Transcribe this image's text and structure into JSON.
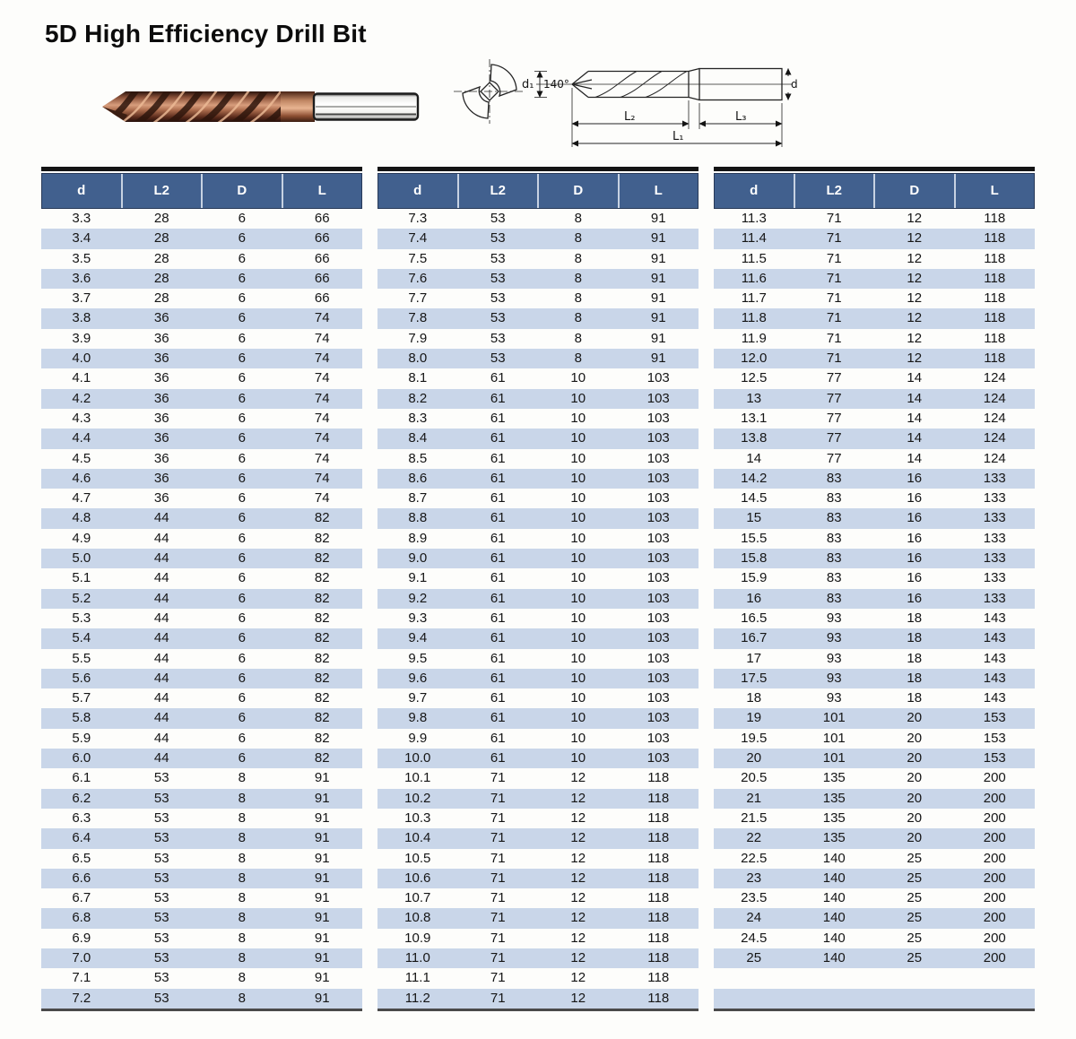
{
  "page": {
    "title": "5D High Efficiency Drill Bit"
  },
  "diagram": {
    "labels": {
      "d1": "d₁",
      "angle": "140°",
      "l2": "L₂",
      "l3": "L₃",
      "l1": "L₁",
      "d2": "d₂"
    }
  },
  "colors": {
    "header_bg": "#41608e",
    "row_alt": "#c9d6e9",
    "top_rule": "#141414",
    "bottom_rule": "#4a4a4a",
    "drill_copper": "#a96a4b"
  },
  "tables": [
    {
      "headers": [
        "d",
        "L2",
        "D",
        "L"
      ],
      "rows": [
        [
          "3.3",
          "28",
          "6",
          "66"
        ],
        [
          "3.4",
          "28",
          "6",
          "66"
        ],
        [
          "3.5",
          "28",
          "6",
          "66"
        ],
        [
          "3.6",
          "28",
          "6",
          "66"
        ],
        [
          "3.7",
          "28",
          "6",
          "66"
        ],
        [
          "3.8",
          "36",
          "6",
          "74"
        ],
        [
          "3.9",
          "36",
          "6",
          "74"
        ],
        [
          "4.0",
          "36",
          "6",
          "74"
        ],
        [
          "4.1",
          "36",
          "6",
          "74"
        ],
        [
          "4.2",
          "36",
          "6",
          "74"
        ],
        [
          "4.3",
          "36",
          "6",
          "74"
        ],
        [
          "4.4",
          "36",
          "6",
          "74"
        ],
        [
          "4.5",
          "36",
          "6",
          "74"
        ],
        [
          "4.6",
          "36",
          "6",
          "74"
        ],
        [
          "4.7",
          "36",
          "6",
          "74"
        ],
        [
          "4.8",
          "44",
          "6",
          "82"
        ],
        [
          "4.9",
          "44",
          "6",
          "82"
        ],
        [
          "5.0",
          "44",
          "6",
          "82"
        ],
        [
          "5.1",
          "44",
          "6",
          "82"
        ],
        [
          "5.2",
          "44",
          "6",
          "82"
        ],
        [
          "5.3",
          "44",
          "6",
          "82"
        ],
        [
          "5.4",
          "44",
          "6",
          "82"
        ],
        [
          "5.5",
          "44",
          "6",
          "82"
        ],
        [
          "5.6",
          "44",
          "6",
          "82"
        ],
        [
          "5.7",
          "44",
          "6",
          "82"
        ],
        [
          "5.8",
          "44",
          "6",
          "82"
        ],
        [
          "5.9",
          "44",
          "6",
          "82"
        ],
        [
          "6.0",
          "44",
          "6",
          "82"
        ],
        [
          "6.1",
          "53",
          "8",
          "91"
        ],
        [
          "6.2",
          "53",
          "8",
          "91"
        ],
        [
          "6.3",
          "53",
          "8",
          "91"
        ],
        [
          "6.4",
          "53",
          "8",
          "91"
        ],
        [
          "6.5",
          "53",
          "8",
          "91"
        ],
        [
          "6.6",
          "53",
          "8",
          "91"
        ],
        [
          "6.7",
          "53",
          "8",
          "91"
        ],
        [
          "6.8",
          "53",
          "8",
          "91"
        ],
        [
          "6.9",
          "53",
          "8",
          "91"
        ],
        [
          "7.0",
          "53",
          "8",
          "91"
        ],
        [
          "7.1",
          "53",
          "8",
          "91"
        ],
        [
          "7.2",
          "53",
          "8",
          "91"
        ]
      ]
    },
    {
      "headers": [
        "d",
        "L2",
        "D",
        "L"
      ],
      "rows": [
        [
          "7.3",
          "53",
          "8",
          "91"
        ],
        [
          "7.4",
          "53",
          "8",
          "91"
        ],
        [
          "7.5",
          "53",
          "8",
          "91"
        ],
        [
          "7.6",
          "53",
          "8",
          "91"
        ],
        [
          "7.7",
          "53",
          "8",
          "91"
        ],
        [
          "7.8",
          "53",
          "8",
          "91"
        ],
        [
          "7.9",
          "53",
          "8",
          "91"
        ],
        [
          "8.0",
          "53",
          "8",
          "91"
        ],
        [
          "8.1",
          "61",
          "10",
          "103"
        ],
        [
          "8.2",
          "61",
          "10",
          "103"
        ],
        [
          "8.3",
          "61",
          "10",
          "103"
        ],
        [
          "8.4",
          "61",
          "10",
          "103"
        ],
        [
          "8.5",
          "61",
          "10",
          "103"
        ],
        [
          "8.6",
          "61",
          "10",
          "103"
        ],
        [
          "8.7",
          "61",
          "10",
          "103"
        ],
        [
          "8.8",
          "61",
          "10",
          "103"
        ],
        [
          "8.9",
          "61",
          "10",
          "103"
        ],
        [
          "9.0",
          "61",
          "10",
          "103"
        ],
        [
          "9.1",
          "61",
          "10",
          "103"
        ],
        [
          "9.2",
          "61",
          "10",
          "103"
        ],
        [
          "9.3",
          "61",
          "10",
          "103"
        ],
        [
          "9.4",
          "61",
          "10",
          "103"
        ],
        [
          "9.5",
          "61",
          "10",
          "103"
        ],
        [
          "9.6",
          "61",
          "10",
          "103"
        ],
        [
          "9.7",
          "61",
          "10",
          "103"
        ],
        [
          "9.8",
          "61",
          "10",
          "103"
        ],
        [
          "9.9",
          "61",
          "10",
          "103"
        ],
        [
          "10.0",
          "61",
          "10",
          "103"
        ],
        [
          "10.1",
          "71",
          "12",
          "118"
        ],
        [
          "10.2",
          "71",
          "12",
          "118"
        ],
        [
          "10.3",
          "71",
          "12",
          "118"
        ],
        [
          "10.4",
          "71",
          "12",
          "118"
        ],
        [
          "10.5",
          "71",
          "12",
          "118"
        ],
        [
          "10.6",
          "71",
          "12",
          "118"
        ],
        [
          "10.7",
          "71",
          "12",
          "118"
        ],
        [
          "10.8",
          "71",
          "12",
          "118"
        ],
        [
          "10.9",
          "71",
          "12",
          "118"
        ],
        [
          "11.0",
          "71",
          "12",
          "118"
        ],
        [
          "11.1",
          "71",
          "12",
          "118"
        ],
        [
          "11.2",
          "71",
          "12",
          "118"
        ]
      ]
    },
    {
      "headers": [
        "d",
        "L2",
        "D",
        "L"
      ],
      "rows": [
        [
          "11.3",
          "71",
          "12",
          "118"
        ],
        [
          "11.4",
          "71",
          "12",
          "118"
        ],
        [
          "11.5",
          "71",
          "12",
          "118"
        ],
        [
          "11.6",
          "71",
          "12",
          "118"
        ],
        [
          "11.7",
          "71",
          "12",
          "118"
        ],
        [
          "11.8",
          "71",
          "12",
          "118"
        ],
        [
          "11.9",
          "71",
          "12",
          "118"
        ],
        [
          "12.0",
          "71",
          "12",
          "118"
        ],
        [
          "12.5",
          "77",
          "14",
          "124"
        ],
        [
          "13",
          "77",
          "14",
          "124"
        ],
        [
          "13.1",
          "77",
          "14",
          "124"
        ],
        [
          "13.8",
          "77",
          "14",
          "124"
        ],
        [
          "14",
          "77",
          "14",
          "124"
        ],
        [
          "14.2",
          "83",
          "16",
          "133"
        ],
        [
          "14.5",
          "83",
          "16",
          "133"
        ],
        [
          "15",
          "83",
          "16",
          "133"
        ],
        [
          "15.5",
          "83",
          "16",
          "133"
        ],
        [
          "15.8",
          "83",
          "16",
          "133"
        ],
        [
          "15.9",
          "83",
          "16",
          "133"
        ],
        [
          "16",
          "83",
          "16",
          "133"
        ],
        [
          "16.5",
          "93",
          "18",
          "143"
        ],
        [
          "16.7",
          "93",
          "18",
          "143"
        ],
        [
          "17",
          "93",
          "18",
          "143"
        ],
        [
          "17.5",
          "93",
          "18",
          "143"
        ],
        [
          "18",
          "93",
          "18",
          "143"
        ],
        [
          "19",
          "101",
          "20",
          "153"
        ],
        [
          "19.5",
          "101",
          "20",
          "153"
        ],
        [
          "20",
          "101",
          "20",
          "153"
        ],
        [
          "20.5",
          "135",
          "20",
          "200"
        ],
        [
          "21",
          "135",
          "20",
          "200"
        ],
        [
          "21.5",
          "135",
          "20",
          "200"
        ],
        [
          "22",
          "135",
          "20",
          "200"
        ],
        [
          "22.5",
          "140",
          "25",
          "200"
        ],
        [
          "23",
          "140",
          "25",
          "200"
        ],
        [
          "23.5",
          "140",
          "25",
          "200"
        ],
        [
          "24",
          "140",
          "25",
          "200"
        ],
        [
          "24.5",
          "140",
          "25",
          "200"
        ],
        [
          "25",
          "140",
          "25",
          "200"
        ],
        [
          "",
          "",
          "",
          ""
        ],
        [
          "",
          "",
          "",
          ""
        ]
      ]
    }
  ]
}
